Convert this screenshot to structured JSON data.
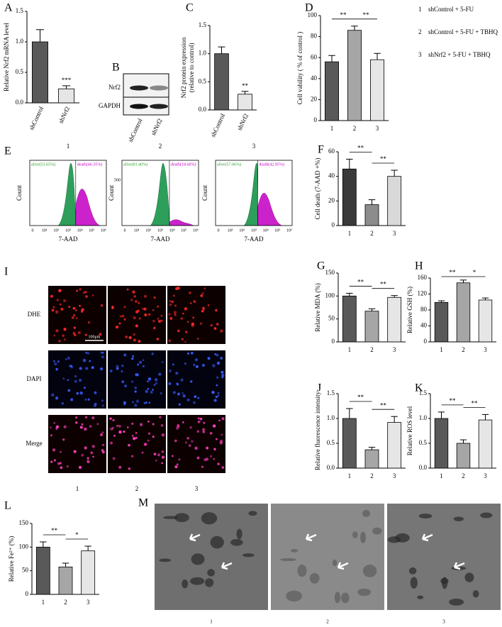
{
  "chart_data": [
    {
      "type": "bar",
      "y_label": "Relative Nrf2 mRNA level",
      "categories": [
        "shControl",
        "shNrf2"
      ],
      "values": [
        1.0,
        0.23
      ],
      "errors": [
        0.2,
        0.05
      ],
      "colors": [
        "#595959",
        "#e6e6e6"
      ],
      "ylim": [
        0,
        1.5
      ],
      "yticks": [
        {
          "value": 0,
          "label": "0.0"
        },
        {
          "value": 0.5,
          "label": "0.5"
        },
        {
          "value": 1,
          "label": "1.0"
        },
        {
          "value": 1.5,
          "label": "1.5"
        }
      ],
      "significance": [
        null,
        "***"
      ],
      "comparisons": []
    },
    {
      "type": "bar",
      "y_label": [
        "Nrf2 protein expression",
        "(relative to control)"
      ],
      "categories": [
        "shControl",
        "shNrf2"
      ],
      "values": [
        1.0,
        0.28
      ],
      "errors": [
        0.12,
        0.05
      ],
      "colors": [
        "#595959",
        "#e6e6e6"
      ],
      "ylim": [
        0,
        1.5
      ],
      "yticks": [
        {
          "value": 0,
          "label": "0.0"
        },
        {
          "value": 0.5,
          "label": "0.5"
        },
        {
          "value": 1,
          "label": "1.0"
        },
        {
          "value": 1.5,
          "label": "1.5"
        }
      ],
      "significance": [
        null,
        "**"
      ],
      "comparisons": []
    },
    {
      "type": "bar",
      "y_label": "Cell vability ( % of control )",
      "categories": [
        "1",
        "2",
        "3"
      ],
      "values": [
        56,
        86,
        58
      ],
      "errors": [
        6,
        4,
        6
      ],
      "colors": [
        "#595959",
        "#a6a6a6",
        "#e6e6e6"
      ],
      "ylim": [
        0,
        100
      ],
      "yticks": [
        0,
        20,
        40,
        60,
        80,
        100
      ],
      "significance": [
        null,
        null,
        null
      ],
      "comparisons": [
        {
          "pair": [
            0,
            1
          ],
          "label": "**"
        },
        {
          "pair": [
            1,
            2
          ],
          "label": "**"
        }
      ]
    },
    {
      "type": "bar",
      "y_label": "Cell death (7-AAD +%)",
      "categories": [
        "1",
        "2",
        "3"
      ],
      "values": [
        46,
        17,
        40
      ],
      "errors": [
        8,
        4,
        5
      ],
      "colors": [
        "#3a3a3a",
        "#8c8c8c",
        "#d9d9d9"
      ],
      "ylim": [
        0,
        60
      ],
      "yticks": [
        0,
        20,
        40,
        60
      ],
      "significance": [
        null,
        null,
        null
      ],
      "comparisons": [
        {
          "pair": [
            0,
            1
          ],
          "label": "**"
        },
        {
          "pair": [
            1,
            2
          ],
          "label": "**"
        }
      ]
    },
    {
      "type": "bar",
      "y_label": "Relative MDA (%)",
      "categories": [
        "1",
        "2",
        "3"
      ],
      "values": [
        100,
        67,
        97
      ],
      "errors": [
        6,
        5,
        4
      ],
      "colors": [
        "#595959",
        "#a6a6a6",
        "#e6e6e6"
      ],
      "ylim": [
        0,
        150
      ],
      "yticks": [
        0,
        50,
        100,
        150
      ],
      "significance": [
        null,
        null,
        null
      ],
      "comparisons": [
        {
          "pair": [
            0,
            1
          ],
          "label": "**"
        },
        {
          "pair": [
            1,
            2
          ],
          "label": "**"
        }
      ]
    },
    {
      "type": "bar",
      "y_label": "Relative GSH (%)",
      "categories": [
        "1",
        "2",
        "3"
      ],
      "values": [
        99,
        148,
        105
      ],
      "errors": [
        4,
        7,
        5
      ],
      "colors": [
        "#595959",
        "#a6a6a6",
        "#e6e6e6"
      ],
      "ylim": [
        0,
        160
      ],
      "yticks": [
        0,
        40,
        80,
        120,
        160
      ],
      "significance": [
        null,
        null,
        null
      ],
      "comparisons": [
        {
          "pair": [
            0,
            1
          ],
          "label": "**"
        },
        {
          "pair": [
            1,
            2
          ],
          "label": "*"
        }
      ]
    },
    {
      "type": "bar",
      "y_label": "Relative fluorescence intensity",
      "categories": [
        "1",
        "2",
        "3"
      ],
      "values": [
        1.0,
        0.37,
        0.92
      ],
      "errors": [
        0.2,
        0.05,
        0.12
      ],
      "colors": [
        "#595959",
        "#a6a6a6",
        "#e6e6e6"
      ],
      "ylim": [
        0,
        1.5
      ],
      "yticks": [
        {
          "value": 0,
          "label": "0.0"
        },
        {
          "value": 0.5,
          "label": "0.5"
        },
        {
          "value": 1,
          "label": "1.0"
        },
        {
          "value": 1.5,
          "label": "1.5"
        }
      ],
      "significance": [
        null,
        null,
        null
      ],
      "comparisons": [
        {
          "pair": [
            0,
            1
          ],
          "label": "**"
        },
        {
          "pair": [
            1,
            2
          ],
          "label": "**"
        }
      ]
    },
    {
      "type": "bar",
      "y_label": "Relative ROS level",
      "categories": [
        "1",
        "2",
        "3"
      ],
      "values": [
        1.0,
        0.5,
        0.97
      ],
      "errors": [
        0.13,
        0.07,
        0.11
      ],
      "colors": [
        "#595959",
        "#a6a6a6",
        "#e6e6e6"
      ],
      "ylim": [
        0,
        1.5
      ],
      "yticks": [
        {
          "value": 0,
          "label": "0.0"
        },
        {
          "value": 0.5,
          "label": "0.5"
        },
        {
          "value": 1,
          "label": "1.0"
        },
        {
          "value": 1.5,
          "label": "1.5"
        }
      ],
      "significance": [
        null,
        null,
        null
      ],
      "comparisons": [
        {
          "pair": [
            0,
            1
          ],
          "label": "**"
        },
        {
          "pair": [
            1,
            2
          ],
          "label": "**"
        }
      ]
    },
    {
      "type": "bar",
      "y_label": "Relative Fe²⁺ (%)",
      "categories": [
        "1",
        "2",
        "3"
      ],
      "values": [
        100,
        58,
        92
      ],
      "errors": [
        11,
        8,
        10
      ],
      "colors": [
        "#595959",
        "#a6a6a6",
        "#e6e6e6"
      ],
      "ylim": [
        0,
        150
      ],
      "yticks": [
        0,
        50,
        100,
        150
      ],
      "significance": [
        null,
        null,
        null
      ],
      "comparisons": [
        {
          "pair": [
            0,
            1
          ],
          "label": "**"
        },
        {
          "pair": [
            1,
            2
          ],
          "label": "*"
        }
      ]
    }
  ],
  "panel_letters": [
    "A",
    "B",
    "C",
    "D",
    "E",
    "F",
    "G",
    "H",
    "I",
    "J",
    "K",
    "L",
    "M"
  ],
  "legend": [
    {
      "number": "1",
      "text": "shControl + 5-FU"
    },
    {
      "number": "2",
      "text": "shControl + 5-FU + TBHQ"
    },
    {
      "number": "3",
      "text": "shNrf2 + 5-FU + TBHQ"
    }
  ],
  "blot": {
    "rows": [
      "Nrf2",
      "GAPDH"
    ],
    "columns": [
      "shControl",
      "shNrf2"
    ]
  },
  "flow": {
    "x_label": "7-AAD",
    "y_label": "Count",
    "xticks": [
      "0",
      "10¹",
      "10²",
      "10³",
      "10⁴",
      "10⁵",
      "10⁶"
    ],
    "plots": [
      {
        "title": "1",
        "alive": "alive(53.65%)",
        "death": "death(46.35%)"
      },
      {
        "title": "2",
        "alive": "alive(81.40%)",
        "death": "death(18.60%)",
        "ytick": "500"
      },
      {
        "title": "3",
        "alive": "alive(57.06%)",
        "death": "death(42.95%)"
      }
    ]
  },
  "imaging": {
    "rows": [
      "DHE",
      "DAPI",
      "Merge"
    ],
    "columns": [
      "1",
      "2",
      "3"
    ],
    "scale": "100μm"
  },
  "tem": {
    "columns": [
      "1",
      "2",
      "3"
    ]
  }
}
